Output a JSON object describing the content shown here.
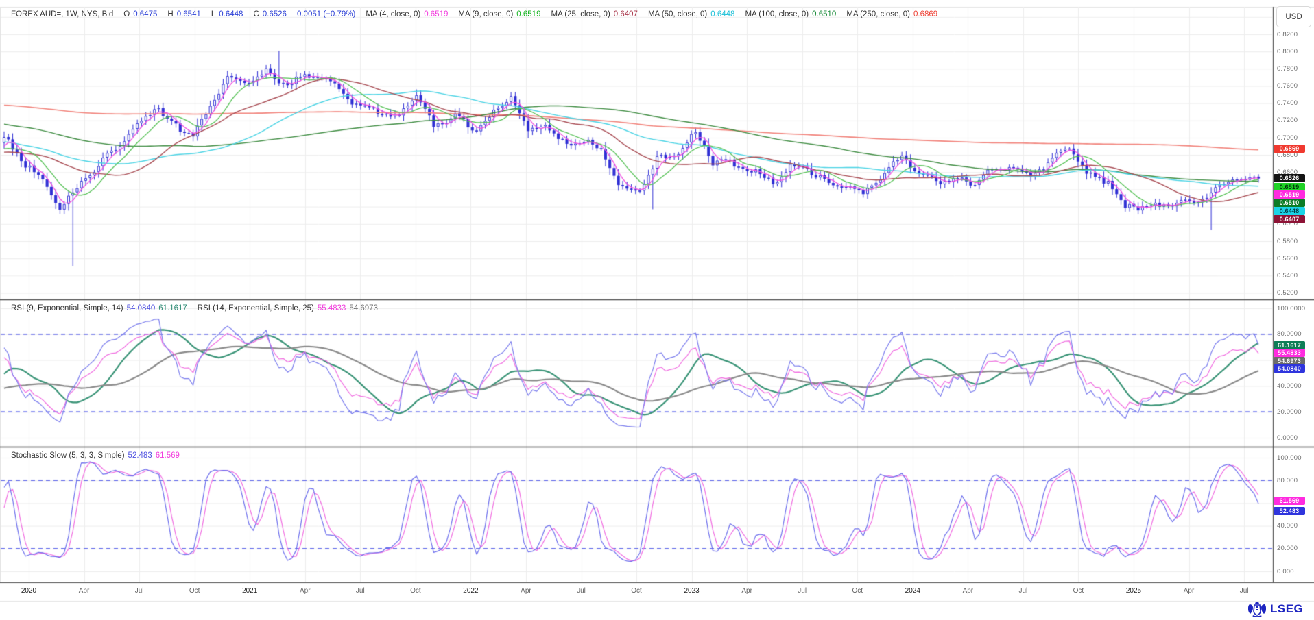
{
  "header": {
    "currency": "USD",
    "legend": {
      "title": "FOREX AUD=, 1W, NYS, Bid",
      "quote_fields": [
        {
          "label": "O",
          "value": "0.6475"
        },
        {
          "label": "H",
          "value": "0.6541"
        },
        {
          "label": "L",
          "value": "0.6448"
        },
        {
          "label": "C",
          "value": "0.6526"
        },
        {
          "label": "",
          "value": "0.0051 (+0.79%)"
        }
      ],
      "quote_value_color": "#2b3fd6",
      "ma_fields": [
        {
          "label": "MA (4, close, 0)",
          "value": "0.6519",
          "color": "#f23ddd"
        },
        {
          "label": "MA (9, close, 0)",
          "value": "0.6519",
          "color": "#14b31f"
        },
        {
          "label": "MA (25, close, 0)",
          "value": "0.6407",
          "color": "#ab3a4e"
        },
        {
          "label": "MA (50, close, 0)",
          "value": "0.6448",
          "color": "#1fc1d8"
        },
        {
          "label": "MA (100, close, 0)",
          "value": "0.6510",
          "color": "#188a38"
        },
        {
          "label": "MA (250, close, 0)",
          "value": "0.6869",
          "color": "#ee4135"
        }
      ]
    }
  },
  "logo": {
    "text": "LSEG"
  },
  "panes": {
    "price": {
      "ticks": [
        {
          "t": "0.8200",
          "v": 0.82
        },
        {
          "t": "0.8000",
          "v": 0.8
        },
        {
          "t": "0.7800",
          "v": 0.78
        },
        {
          "t": "0.7600",
          "v": 0.76
        },
        {
          "t": "0.7400",
          "v": 0.74
        },
        {
          "t": "0.7200",
          "v": 0.72
        },
        {
          "t": "0.7000",
          "v": 0.7
        },
        {
          "t": "0.6800",
          "v": 0.68
        },
        {
          "t": "0.6600",
          "v": 0.66
        },
        {
          "t": "0.6000",
          "v": 0.6
        },
        {
          "t": "0.5800",
          "v": 0.58
        },
        {
          "t": "0.5600",
          "v": 0.56
        },
        {
          "t": "0.5400",
          "v": 0.54
        },
        {
          "t": "0.5200",
          "v": 0.52
        }
      ],
      "value_tags": [
        {
          "t": "0.6869",
          "bg": "#f0392f",
          "fg": "#ffffff",
          "v": 0.6869
        }
      ],
      "stacked_tags": [
        {
          "t": "0.6526",
          "bg": "#141414",
          "fg": "#ffffff"
        },
        {
          "t": "0.6519",
          "bg": "#1fd226",
          "fg": "#00320a"
        },
        {
          "t": "0.6519",
          "bg": "#ff2bdf",
          "fg": "#ffffff"
        },
        {
          "t": "0.6510",
          "bg": "#0c7c25",
          "fg": "#ffffff"
        },
        {
          "t": "0.6448",
          "bg": "#1bd3e6",
          "fg": "#004049"
        },
        {
          "t": "0.6407",
          "bg": "#8d1336",
          "fg": "#ffffff"
        }
      ]
    },
    "rsi": {
      "legend": {
        "groups": [
          {
            "label": "RSI (9, Exponential, Simple, 14)",
            "values": [
              {
                "text": "54.0840",
                "color": "#4f52e0"
              },
              {
                "text": "61.1617",
                "color": "#2e8b74"
              }
            ]
          },
          {
            "label": "RSI (14, Exponential, Simple, 25)",
            "values": [
              {
                "text": "55.4833",
                "color": "#f23ddd"
              },
              {
                "text": "54.6973",
                "color": "#757575"
              }
            ]
          }
        ]
      },
      "ticks": [
        {
          "t": "100.0000",
          "v": 100
        },
        {
          "t": "80.0000",
          "v": 80
        },
        {
          "t": "40.0000",
          "v": 40
        },
        {
          "t": "20.0000",
          "v": 20
        },
        {
          "t": "0.0000",
          "v": 0
        }
      ],
      "stacked_tags": [
        {
          "t": "61.1617",
          "bg": "#0f7e57",
          "fg": "#ffffff"
        },
        {
          "t": "55.4833",
          "bg": "#ff2bdf",
          "fg": "#ffffff"
        },
        {
          "t": "54.6973",
          "bg": "#6b6b6b",
          "fg": "#ffffff"
        },
        {
          "t": "54.0840",
          "bg": "#2f35dd",
          "fg": "#ffffff"
        }
      ],
      "levels": [
        80,
        20
      ]
    },
    "stoch": {
      "legend": {
        "groups": [
          {
            "label": "Stochastic Slow (5, 3, 3, Simple)",
            "values": [
              {
                "text": "52.483",
                "color": "#4f52e0"
              },
              {
                "text": "61.569",
                "color": "#f23ddd"
              }
            ]
          }
        ]
      },
      "ticks": [
        {
          "t": "100.000",
          "v": 100
        },
        {
          "t": "80.000",
          "v": 80
        },
        {
          "t": "40.000",
          "v": 40
        },
        {
          "t": "20.000",
          "v": 20
        },
        {
          "t": "0.000",
          "v": 0
        }
      ],
      "value_tags": [
        {
          "t": "61.569",
          "bg": "#ff2bdf",
          "fg": "#ffffff",
          "v": 61.569
        },
        {
          "t": "52.483",
          "bg": "#2f35dd",
          "fg": "#ffffff",
          "v": 52.483
        }
      ],
      "levels": [
        80,
        20
      ]
    }
  },
  "time_axis": {
    "labels": [
      "2020",
      "Apr",
      "Jul",
      "Oct",
      "2021",
      "Apr",
      "Jul",
      "Oct",
      "2022",
      "Apr",
      "Jul",
      "Oct",
      "2023",
      "Apr",
      "Jul",
      "Oct",
      "2024",
      "Apr",
      "Jul",
      "Oct",
      "2025",
      "Apr",
      "Jul"
    ]
  },
  "colors": {
    "candle": "#2f2fd4",
    "grid": "#ededed",
    "level_dashed": "#3c46e8",
    "separator": "#4d4d4d",
    "frame": "#e3e3e3",
    "ma4": "#f24fe0",
    "ma9": "#55c155",
    "ma25": "#a84a52",
    "ma50": "#49d3e4",
    "ma100": "#3d8b40",
    "ma250": "#f1837b",
    "rsi_fast": "#7a7ced",
    "rsi_fast_signal": "#3a9477",
    "rsi_slow": "#f06ae0",
    "rsi_slow_signal": "#8a8a8a",
    "stoch_k": "#6a6cec",
    "stoch_d": "#f06ae0"
  },
  "chart_data": {
    "type": "candlestick",
    "symbol": "AUD= (FOREX AUD/USD)",
    "interval": "1W",
    "venue": "NYS",
    "side": "Bid",
    "current_bar": {
      "open": 0.6475,
      "high": 0.6541,
      "low": 0.6448,
      "close": 0.6526,
      "change": 0.0051,
      "change_pct": "+0.79%"
    },
    "price_axis_range": [
      0.52,
      0.82
    ],
    "oscillator_range": [
      0,
      100
    ],
    "overbought_oversold_levels": [
      80,
      20
    ],
    "moving_averages": [
      {
        "period": 4,
        "value": 0.6519
      },
      {
        "period": 9,
        "value": 0.6519
      },
      {
        "period": 25,
        "value": 0.6407
      },
      {
        "period": 50,
        "value": 0.6448
      },
      {
        "period": 100,
        "value": 0.651
      },
      {
        "period": 250,
        "value": 0.6869
      }
    ],
    "rsi": {
      "fast": {
        "period": 9,
        "smoothing": 14,
        "value": 54.084,
        "signal_value": 61.1617
      },
      "slow": {
        "period": 14,
        "smoothing": 25,
        "value": 55.4833,
        "signal_value": 54.6973
      }
    },
    "stochastic": {
      "k_period": 5,
      "k_smooth": 3,
      "d_smooth": 3,
      "k_value": 52.483,
      "d_value": 61.569
    },
    "start_month": "2019-12",
    "end_month": "2025-07",
    "monthly_closes": [
      0.7,
      0.669,
      0.651,
      0.617,
      0.651,
      0.666,
      0.69,
      0.714,
      0.737,
      0.716,
      0.703,
      0.735,
      0.769,
      0.764,
      0.776,
      0.761,
      0.772,
      0.773,
      0.75,
      0.735,
      0.731,
      0.723,
      0.752,
      0.713,
      0.726,
      0.707,
      0.723,
      0.749,
      0.706,
      0.716,
      0.688,
      0.699,
      0.684,
      0.64,
      0.641,
      0.675,
      0.681,
      0.706,
      0.673,
      0.669,
      0.661,
      0.65,
      0.666,
      0.665,
      0.645,
      0.644,
      0.634,
      0.661,
      0.681,
      0.657,
      0.65,
      0.652,
      0.647,
      0.665,
      0.667,
      0.654,
      0.677,
      0.691,
      0.656,
      0.651,
      0.619,
      0.622,
      0.621,
      0.625,
      0.626,
      0.643,
      0.655,
      0.6526
    ],
    "events": [
      {
        "month_index": 3,
        "low": 0.551
      },
      {
        "month_index": 14,
        "high": 0.8007
      },
      {
        "month_index": 34,
        "low": 0.617
      },
      {
        "month_index": 64,
        "low": 0.5931
      }
    ],
    "pre_window_monthly_closes": [
      0.813,
      0.781,
      0.764,
      0.79,
      0.765,
      0.771,
      0.73,
      0.711,
      0.701,
      0.714,
      0.723,
      0.729,
      0.708,
      0.714,
      0.766,
      0.76,
      0.723,
      0.746,
      0.76,
      0.751,
      0.766,
      0.761,
      0.74,
      0.722,
      0.758,
      0.766,
      0.763,
      0.749,
      0.743,
      0.769,
      0.798,
      0.794,
      0.783,
      0.766,
      0.757,
      0.781,
      0.806,
      0.726,
      0.767,
      0.754,
      0.757,
      0.739,
      0.743,
      0.719,
      0.722,
      0.708,
      0.731,
      0.705,
      0.727,
      0.709,
      0.71,
      0.705,
      0.693,
      0.702,
      0.685,
      0.673,
      0.675,
      0.69,
      0.677
    ]
  }
}
